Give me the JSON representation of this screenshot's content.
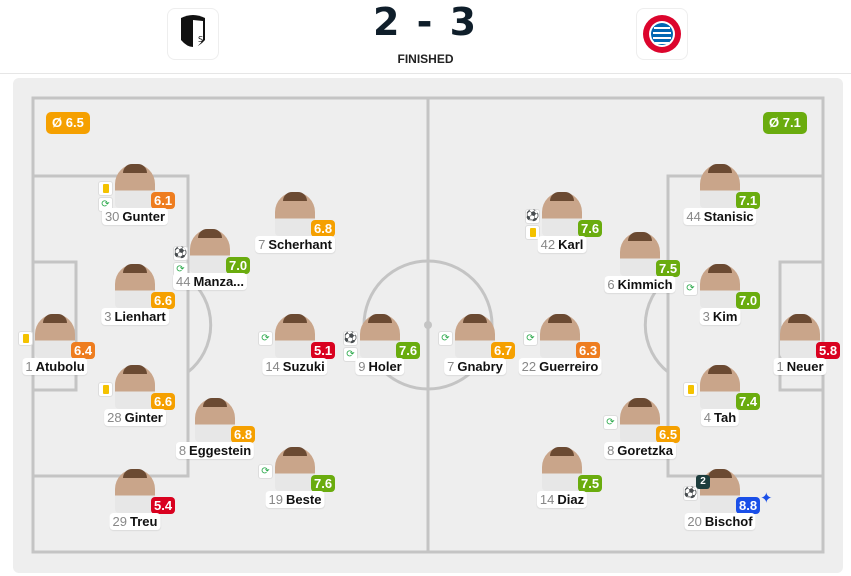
{
  "match": {
    "home_team_logo": "SC Freiburg",
    "away_team_logo": "FC Bayern München",
    "score": "2 - 3",
    "status": "FINISHED"
  },
  "averages": {
    "home": "Ø 6.5",
    "away": "Ø 7.1",
    "home_color": "#f5a000",
    "away_color": "#6aac0e"
  },
  "rating_colors": {
    "red": "#d9011f",
    "orange": "#ee7d1f",
    "amber": "#f5a000",
    "green": "#6aac0e",
    "blue": "#1a4fe8"
  },
  "players": [
    {
      "number": "1",
      "name": "Atubolu",
      "rating": "6.4",
      "color": "orange",
      "icons": [
        "yellow-card"
      ]
    },
    {
      "number": "30",
      "name": "Gunter",
      "rating": "6.1",
      "color": "orange",
      "icons": [
        "yellow-card",
        "substitution"
      ]
    },
    {
      "number": "3",
      "name": "Lienhart",
      "rating": "6.6",
      "color": "amber",
      "icons": []
    },
    {
      "number": "28",
      "name": "Ginter",
      "rating": "6.6",
      "color": "amber",
      "icons": [
        "yellow-card"
      ]
    },
    {
      "number": "29",
      "name": "Treu",
      "rating": "5.4",
      "color": "red",
      "icons": []
    },
    {
      "number": "44",
      "name": "Manza...",
      "rating": "7.0",
      "color": "green",
      "icons": [
        "goal",
        "substitution"
      ]
    },
    {
      "number": "7",
      "name": "Scherhant",
      "rating": "6.8",
      "color": "amber",
      "icons": []
    },
    {
      "number": "8",
      "name": "Eggestein",
      "rating": "6.8",
      "color": "amber",
      "icons": []
    },
    {
      "number": "19",
      "name": "Beste",
      "rating": "7.6",
      "color": "green",
      "icons": [
        "substitution"
      ]
    },
    {
      "number": "14",
      "name": "Suzuki",
      "rating": "5.1",
      "color": "red",
      "icons": [
        "substitution"
      ]
    },
    {
      "number": "9",
      "name": "Holer",
      "rating": "7.6",
      "color": "green",
      "icons": [
        "goal",
        "substitution"
      ]
    },
    {
      "number": "7",
      "name": "Gnabry",
      "rating": "6.7",
      "color": "amber",
      "icons": [
        "substitution"
      ]
    },
    {
      "number": "22",
      "name": "Guerreiro",
      "rating": "6.3",
      "color": "orange",
      "icons": [
        "substitution"
      ]
    },
    {
      "number": "42",
      "name": "Karl",
      "rating": "7.6",
      "color": "green",
      "icons": [
        "goal",
        "yellow-card"
      ]
    },
    {
      "number": "6",
      "name": "Kimmich",
      "rating": "7.5",
      "color": "green",
      "icons": []
    },
    {
      "number": "14",
      "name": "Diaz",
      "rating": "7.5",
      "color": "green",
      "icons": []
    },
    {
      "number": "8",
      "name": "Goretzka",
      "rating": "6.5",
      "color": "amber",
      "icons": [
        "substitution"
      ]
    },
    {
      "number": "44",
      "name": "Stanisic",
      "rating": "7.1",
      "color": "green",
      "icons": []
    },
    {
      "number": "3",
      "name": "Kim",
      "rating": "7.0",
      "color": "green",
      "icons": [
        "substitution"
      ]
    },
    {
      "number": "4",
      "name": "Tah",
      "rating": "7.4",
      "color": "green",
      "icons": [
        "yellow-card"
      ]
    },
    {
      "number": "20",
      "name": "Bischof",
      "rating": "8.8",
      "color": "blue",
      "icons": [
        "goal"
      ],
      "goal_count": "2",
      "top_rated": true
    },
    {
      "number": "1",
      "name": "Neuer",
      "rating": "5.8",
      "color": "red",
      "icons": []
    }
  ]
}
